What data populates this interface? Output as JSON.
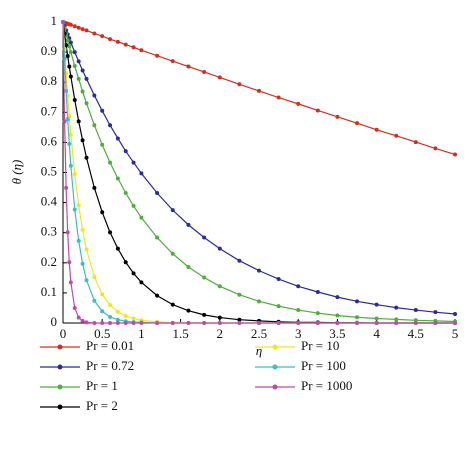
{
  "chart_data": {
    "type": "line",
    "x_label": "η",
    "y_label": "θ (η)",
    "x": [
      0,
      0.02,
      0.04,
      0.06,
      0.08,
      0.1,
      0.15,
      0.2,
      0.25,
      0.3,
      0.4,
      0.5,
      0.6,
      0.7,
      0.8,
      0.9,
      1,
      1.2,
      1.4,
      1.6,
      1.8,
      2,
      2.25,
      2.5,
      2.75,
      3,
      3.25,
      3.5,
      3.75,
      4,
      4.25,
      4.5,
      4.75,
      5
    ],
    "xlim": [
      0,
      5
    ],
    "xticks": [
      0,
      0.5,
      1,
      1.5,
      2,
      2.5,
      3,
      3.5,
      4,
      4.5,
      5
    ],
    "ylim": [
      0,
      1
    ],
    "yticks": [
      0,
      0.1,
      0.2,
      0.3,
      0.4,
      0.5,
      0.6,
      0.7,
      0.8,
      0.9,
      1
    ],
    "series": [
      {
        "name": "Pr = 0.01",
        "color": "#d0301e",
        "values": [
          1,
          0.998,
          0.996,
          0.994,
          0.992,
          0.991,
          0.986,
          0.981,
          0.976,
          0.972,
          0.962,
          0.953,
          0.943,
          0.934,
          0.925,
          0.916,
          0.906,
          0.888,
          0.87,
          0.852,
          0.834,
          0.816,
          0.793,
          0.771,
          0.749,
          0.728,
          0.706,
          0.685,
          0.664,
          0.642,
          0.622,
          0.601,
          0.58,
          0.56
        ]
      },
      {
        "name": "Pr = 0.72",
        "color": "#2b2b9b",
        "values": [
          1,
          0.986,
          0.972,
          0.959,
          0.946,
          0.932,
          0.9,
          0.869,
          0.839,
          0.811,
          0.756,
          0.705,
          0.657,
          0.613,
          0.571,
          0.533,
          0.497,
          0.432,
          0.375,
          0.326,
          0.284,
          0.247,
          0.207,
          0.174,
          0.146,
          0.122,
          0.103,
          0.086,
          0.072,
          0.061,
          0.051,
          0.043,
          0.036,
          0.03
        ]
      },
      {
        "name": "Pr = 1",
        "color": "#4fae3c",
        "values": [
          1,
          0.979,
          0.959,
          0.939,
          0.919,
          0.9,
          0.854,
          0.811,
          0.769,
          0.73,
          0.657,
          0.592,
          0.533,
          0.48,
          0.432,
          0.389,
          0.35,
          0.284,
          0.23,
          0.186,
          0.151,
          0.122,
          0.094,
          0.072,
          0.056,
          0.043,
          0.033,
          0.025,
          0.019,
          0.015,
          0.012,
          0.009,
          0.007,
          0.005
        ]
      },
      {
        "name": "Pr = 2",
        "color": "#000000",
        "values": [
          1,
          0.961,
          0.923,
          0.887,
          0.852,
          0.819,
          0.741,
          0.67,
          0.607,
          0.549,
          0.449,
          0.368,
          0.301,
          0.247,
          0.202,
          0.165,
          0.135,
          0.091,
          0.061,
          0.041,
          0.027,
          0.018,
          0.011,
          0.007,
          0.004,
          0.002,
          0.002,
          0.001,
          0.001,
          0,
          0,
          0,
          0,
          0
        ]
      },
      {
        "name": "Pr = 10",
        "color": "#f2e61a",
        "values": [
          1,
          0.91,
          0.829,
          0.754,
          0.687,
          0.625,
          0.494,
          0.391,
          0.309,
          0.244,
          0.153,
          0.095,
          0.06,
          0.037,
          0.023,
          0.015,
          0.009,
          0.004,
          0.001,
          0.001,
          0,
          0,
          0,
          0,
          0,
          0,
          0,
          0,
          0,
          0,
          0,
          0,
          0,
          0
        ]
      },
      {
        "name": "Pr = 100",
        "color": "#3bbfc0",
        "values": [
          1,
          0.878,
          0.771,
          0.677,
          0.595,
          0.522,
          0.377,
          0.273,
          0.197,
          0.142,
          0.074,
          0.039,
          0.02,
          0.011,
          0.006,
          0.003,
          0.002,
          0,
          0,
          0,
          0,
          0,
          0,
          0,
          0,
          0,
          0,
          0,
          0,
          0,
          0,
          0,
          0,
          0
        ]
      },
      {
        "name": "Pr = 1000",
        "color": "#c04aa8",
        "values": [
          1,
          0.67,
          0.449,
          0.301,
          0.202,
          0.135,
          0.05,
          0.018,
          0.007,
          0.002,
          0,
          0,
          0,
          0,
          0,
          0,
          0,
          0,
          0,
          0,
          0,
          0,
          0,
          0,
          0,
          0,
          0,
          0,
          0,
          0,
          0,
          0,
          0,
          0
        ]
      }
    ]
  }
}
